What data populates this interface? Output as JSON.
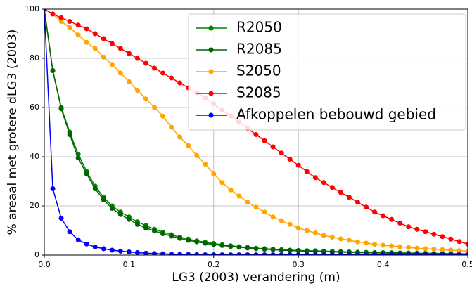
{
  "chart_data": {
    "type": "line",
    "xlabel": "LG3 (2003) verandering (m)",
    "ylabel": "% areaal met grotere dLG3 (2003)",
    "x": [
      0,
      0.01,
      0.02,
      0.03,
      0.04,
      0.05,
      0.06,
      0.07,
      0.08,
      0.09,
      0.1,
      0.11,
      0.12,
      0.13,
      0.14,
      0.15,
      0.16,
      0.17,
      0.18,
      0.19,
      0.2,
      0.21,
      0.22,
      0.23,
      0.24,
      0.25,
      0.26,
      0.27,
      0.28,
      0.29,
      0.3,
      0.31,
      0.32,
      0.33,
      0.34,
      0.35,
      0.36,
      0.37,
      0.38,
      0.39,
      0.4,
      0.41,
      0.42,
      0.43,
      0.44,
      0.45,
      0.46,
      0.47,
      0.48,
      0.49,
      0.5
    ],
    "series": [
      {
        "name": "R2050",
        "color": "#008000",
        "values": [
          100,
          75,
          60,
          50,
          41,
          34,
          28,
          23.5,
          20,
          17.5,
          15.5,
          13.5,
          12,
          10.5,
          9.3,
          8.3,
          7.3,
          6.5,
          5.8,
          5.2,
          4.7,
          4.2,
          3.8,
          3.4,
          3.1,
          2.8,
          2.6,
          2.4,
          2.2,
          2.0,
          1.9,
          1.8,
          1.7,
          1.6,
          1.5,
          1.4,
          1.3,
          1.2,
          1.1,
          1.05,
          1.0,
          0.95,
          0.9,
          0.85,
          0.8,
          0.75,
          0.7,
          0.65,
          0.6,
          0.55,
          0.5
        ]
      },
      {
        "name": "R2085",
        "color": "#006400",
        "values": [
          100,
          75,
          59.5,
          49,
          39.5,
          33,
          27,
          22.5,
          19,
          16.5,
          14.5,
          12.5,
          11,
          9.8,
          8.7,
          7.7,
          6.8,
          6,
          5.4,
          4.8,
          4.3,
          3.9,
          3.5,
          3.2,
          2.9,
          2.6,
          2.4,
          2.2,
          2.0,
          1.85,
          1.7,
          1.6,
          1.5,
          1.4,
          1.3,
          1.2,
          1.1,
          1.0,
          0.95,
          0.9,
          0.85,
          0.8,
          0.75,
          0.7,
          0.65,
          0.6,
          0.55,
          0.5,
          0.45,
          0.4,
          0.35
        ]
      },
      {
        "name": "S2050",
        "color": "#ffa500",
        "values": [
          100,
          98,
          95,
          92.5,
          89.5,
          86.5,
          84,
          80.5,
          77.5,
          74,
          70.5,
          67,
          63.5,
          60,
          56.5,
          52,
          48,
          44.5,
          40.5,
          37,
          33,
          29.5,
          26.5,
          24,
          21.5,
          19.5,
          17.5,
          15.5,
          14,
          12.5,
          11,
          10,
          9,
          8,
          7.3,
          6.6,
          6,
          5.4,
          4.9,
          4.4,
          4,
          3.7,
          3.4,
          3.1,
          2.8,
          2.6,
          2.4,
          2.2,
          2,
          1.8,
          1.6
        ]
      },
      {
        "name": "S2085",
        "color": "#ff0000",
        "values": [
          100,
          98,
          96.5,
          95,
          93.5,
          92,
          90,
          88,
          86,
          84,
          82,
          80,
          78,
          76,
          74,
          72,
          70,
          68,
          66,
          64,
          61.5,
          59,
          56.5,
          54,
          51.5,
          49,
          46.5,
          44,
          41.5,
          39,
          36.5,
          34,
          31.5,
          29.5,
          27.5,
          25.5,
          23.5,
          21.5,
          19.5,
          17.5,
          16,
          14.5,
          13,
          11.5,
          10.5,
          9.5,
          8.5,
          7.5,
          6.5,
          5.5,
          4.5
        ]
      },
      {
        "name": "Afkoppelen bebouwd gebied",
        "color": "#0000ff",
        "values": [
          100,
          27,
          15,
          9.5,
          6.2,
          4.5,
          3.3,
          2.6,
          2.0,
          1.6,
          1.3,
          1.0,
          0.8,
          0.6,
          0.5,
          0.4,
          0.3,
          0.25,
          0.2,
          0.15,
          0.1,
          0.1,
          0.1,
          0.1,
          0.1,
          0.1,
          0.1,
          0.1,
          0.1,
          0.1,
          0.1,
          0.1,
          0.1,
          0.1,
          0.1,
          0.1,
          0.1,
          0.1,
          0.1,
          0.1,
          0.1,
          0.1,
          0.1,
          0.1,
          0.1,
          0.1,
          0.1,
          0.1,
          0.1,
          0.1,
          0.1
        ]
      }
    ],
    "xlim": [
      0,
      0.5
    ],
    "ylim": [
      0,
      100
    ],
    "xticks": [
      {
        "value": 0,
        "label": "0.0"
      },
      0.1,
      0.2,
      0.3,
      0.4,
      0.5
    ],
    "yticks": [
      0,
      20,
      40,
      60,
      80,
      100
    ],
    "grid": true,
    "legend": "upper right"
  }
}
